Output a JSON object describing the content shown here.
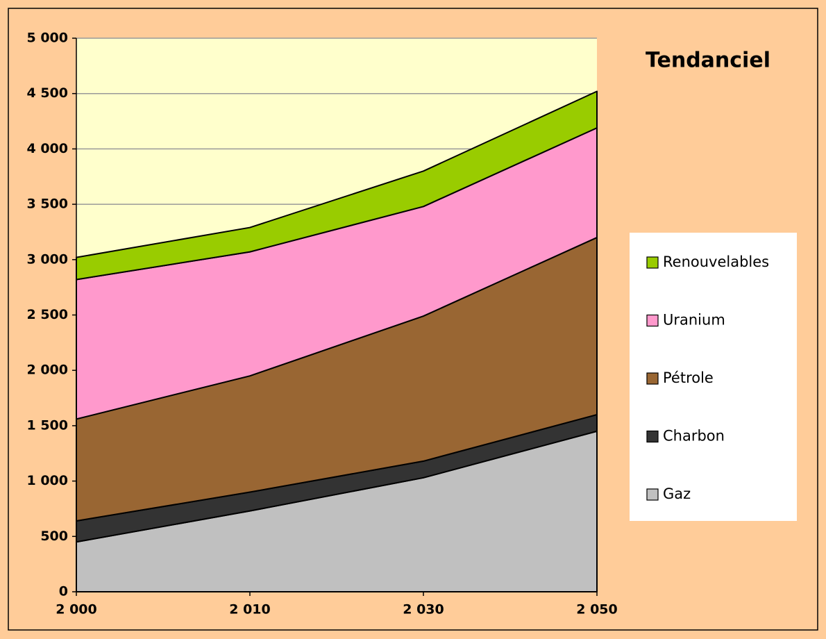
{
  "chart_data": {
    "type": "stacked_area",
    "title": "Tendanciel",
    "categories": [
      "2 000",
      "2 010",
      "2 030",
      "2 050"
    ],
    "series": [
      {
        "name": "Gaz",
        "color": "#c0c0c0",
        "values": [
          450,
          730,
          1030,
          1450
        ]
      },
      {
        "name": "Charbon",
        "color": "#333333",
        "values": [
          190,
          170,
          150,
          150
        ]
      },
      {
        "name": "Pétrole",
        "color": "#996633",
        "values": [
          920,
          1050,
          1310,
          1600
        ]
      },
      {
        "name": "Uranium",
        "color": "#ff99cc",
        "values": [
          1260,
          1120,
          990,
          990
        ]
      },
      {
        "name": "Renouvelables",
        "color": "#99cc00",
        "values": [
          200,
          220,
          320,
          330
        ]
      }
    ],
    "ylim": [
      0,
      5000
    ],
    "yticks": [
      0,
      500,
      {
        "value": 1000,
        "label": "1 000"
      },
      {
        "value": 1500,
        "label": "1 500"
      },
      {
        "value": 2000,
        "label": "2 000"
      },
      {
        "value": 2500,
        "label": "2 500"
      },
      {
        "value": 3000,
        "label": "3 000"
      },
      {
        "value": 3500,
        "label": "3 500"
      },
      {
        "value": 4000,
        "label": "4 000"
      },
      {
        "value": 4500,
        "label": "4 500"
      },
      {
        "value": 5000,
        "label": "5 000"
      }
    ],
    "grid": true,
    "legend": "right"
  }
}
